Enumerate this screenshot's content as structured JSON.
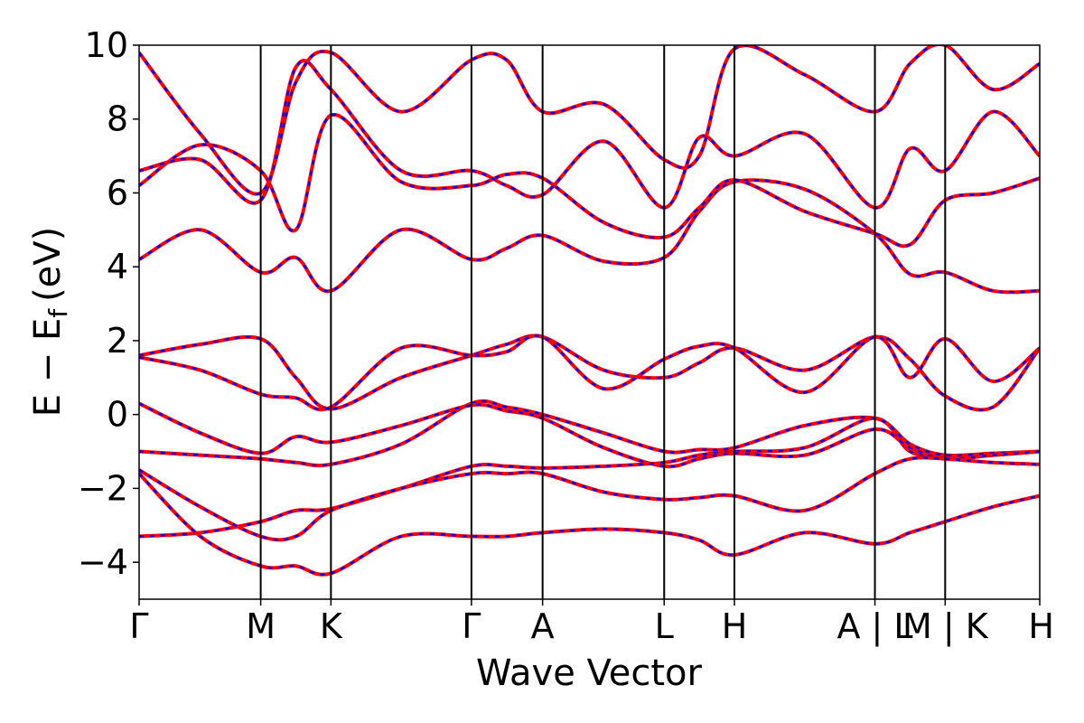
{
  "chart_data": {
    "type": "line",
    "xlabel": "Wave Vector",
    "ylabel": "E − E",
    "ylabel_sub": "f",
    "ylabel_unit": "(eV)",
    "ylim": [
      -5,
      10
    ],
    "yticks": [
      -4,
      -2,
      0,
      2,
      4,
      6,
      8,
      10
    ],
    "ytick_labels": [
      "−4",
      "−2",
      "0",
      "2",
      "4",
      "6",
      "8",
      "10"
    ],
    "xlim": [
      0,
      10
    ],
    "kpoints": [
      {
        "label": "Γ",
        "x": 0.0
      },
      {
        "label": "M",
        "x": 1.35
      },
      {
        "label": "K",
        "x": 2.13
      },
      {
        "label": "Γ",
        "x": 3.69
      },
      {
        "label": "A",
        "x": 4.48
      },
      {
        "label": "L",
        "x": 5.83
      },
      {
        "label": "H",
        "x": 6.61
      },
      {
        "label": "A | L",
        "x": 8.17
      },
      {
        "label": "M | K",
        "x": 8.95
      },
      {
        "label": "H",
        "x": 10.0
      }
    ],
    "grid": false,
    "series_colors": {
      "solid": "#ff0000",
      "dashed": "#0000ff"
    },
    "series": [
      {
        "x": [
          0,
          0.68,
          1.35,
          1.74,
          2.13,
          2.91,
          3.69,
          4.08,
          4.48,
          5.16,
          5.83,
          6.22,
          6.61,
          7.39,
          8.17,
          8.56,
          8.95,
          9.48,
          10
        ],
        "y": [
          -3.3,
          -3.2,
          -2.9,
          -2.6,
          -2.55,
          -2.0,
          -1.4,
          -1.4,
          -1.45,
          -1.4,
          -1.3,
          -1.1,
          -1.0,
          -0.9,
          -0.1,
          -1.0,
          -1.15,
          -1.1,
          -1.0
        ]
      },
      {
        "x": [
          0,
          0.68,
          1.35,
          1.74,
          2.13,
          2.91,
          3.69,
          4.08,
          4.48,
          5.16,
          5.83,
          6.22,
          6.61,
          7.39,
          8.17,
          8.56,
          8.95,
          9.48,
          10
        ],
        "y": [
          -1.0,
          -1.1,
          -1.2,
          -1.3,
          -1.35,
          -0.8,
          0.3,
          0.2,
          0.0,
          -0.5,
          -1.0,
          -0.95,
          -0.9,
          -0.3,
          -0.1,
          -0.8,
          -1.1,
          -1.05,
          -1.0
        ]
      },
      {
        "x": [
          0,
          0.68,
          1.35,
          1.74,
          2.13,
          2.91,
          3.69,
          4.08,
          4.48,
          5.16,
          5.83,
          6.22,
          6.61,
          7.39,
          8.17,
          8.56,
          8.95,
          9.48,
          10
        ],
        "y": [
          0.3,
          -0.5,
          -1.05,
          -0.6,
          -0.75,
          -0.3,
          0.25,
          0.1,
          -0.1,
          -0.9,
          -1.4,
          -1.2,
          -1.05,
          -1.1,
          -0.4,
          -0.9,
          -1.2,
          -1.1,
          -1.0
        ]
      },
      {
        "x": [
          0,
          0.68,
          1.35,
          1.74,
          2.13,
          2.91,
          3.69,
          4.08,
          4.48,
          5.16,
          5.83,
          6.22,
          6.61,
          7.39,
          8.17,
          8.56,
          8.95,
          9.48,
          10
        ],
        "y": [
          -1.5,
          -2.5,
          -3.3,
          -3.3,
          -2.6,
          -2.0,
          -1.6,
          -1.6,
          -1.6,
          -2.1,
          -2.3,
          -2.25,
          -2.2,
          -2.6,
          -1.6,
          -1.2,
          -1.2,
          -1.3,
          -1.35
        ]
      },
      {
        "x": [
          0,
          0.68,
          1.35,
          1.74,
          2.13,
          2.91,
          3.69,
          4.08,
          4.48,
          5.16,
          5.83,
          6.22,
          6.61,
          7.39,
          8.17,
          8.56,
          8.95,
          9.48,
          10
        ],
        "y": [
          -1.6,
          -3.3,
          -4.1,
          -4.1,
          -4.3,
          -3.3,
          -3.3,
          -3.3,
          -3.2,
          -3.1,
          -3.2,
          -3.4,
          -3.8,
          -3.2,
          -3.5,
          -3.2,
          -2.9,
          -2.5,
          -2.2
        ]
      },
      {
        "x": [
          0,
          0.68,
          1.35,
          1.74,
          2.13,
          2.91,
          3.69,
          4.08,
          4.48,
          5.16,
          5.83,
          6.22,
          6.61,
          7.39,
          8.17,
          8.56,
          8.95,
          9.48,
          10
        ],
        "y": [
          1.6,
          1.9,
          2.05,
          1.0,
          0.15,
          1.0,
          1.6,
          1.9,
          2.1,
          1.2,
          1.0,
          1.4,
          1.8,
          1.2,
          2.1,
          1.5,
          0.5,
          0.2,
          1.8
        ]
      },
      {
        "x": [
          0,
          0.68,
          1.35,
          1.74,
          2.13,
          2.91,
          3.69,
          4.08,
          4.48,
          5.16,
          5.83,
          6.22,
          6.61,
          7.39,
          8.17,
          8.56,
          8.95,
          9.48,
          10
        ],
        "y": [
          1.55,
          1.2,
          0.55,
          0.45,
          0.2,
          1.8,
          1.6,
          1.7,
          2.1,
          0.7,
          1.5,
          1.85,
          1.8,
          0.6,
          2.1,
          1.0,
          2.05,
          0.9,
          1.8
        ]
      },
      {
        "x": [
          0,
          0.68,
          1.35,
          1.74,
          2.13,
          2.91,
          3.69,
          4.08,
          4.48,
          5.16,
          5.83,
          6.22,
          6.61,
          7.39,
          8.17,
          8.56,
          8.95,
          9.48,
          10
        ],
        "y": [
          4.2,
          5.0,
          3.85,
          4.25,
          3.35,
          5.0,
          4.2,
          4.5,
          4.85,
          4.15,
          4.25,
          5.5,
          6.3,
          6.1,
          4.9,
          3.8,
          3.85,
          3.35,
          3.35
        ]
      },
      {
        "x": [
          0,
          0.68,
          1.35,
          1.74,
          2.13,
          2.91,
          3.69,
          4.08,
          4.48,
          5.16,
          5.83,
          6.22,
          6.61,
          7.39,
          8.17,
          8.56,
          8.95,
          9.48,
          10
        ],
        "y": [
          6.2,
          7.3,
          6.6,
          5.0,
          8.1,
          6.3,
          6.2,
          6.5,
          6.4,
          5.2,
          4.8,
          5.6,
          6.35,
          5.5,
          4.9,
          4.6,
          5.8,
          6.0,
          6.4
        ]
      },
      {
        "x": [
          0,
          0.68,
          1.35,
          1.74,
          2.13,
          2.91,
          3.69,
          4.08,
          4.48,
          5.16,
          5.83,
          6.22,
          6.61,
          7.39,
          8.17,
          8.56,
          8.95,
          9.48,
          10
        ],
        "y": [
          6.6,
          6.9,
          5.8,
          9.4,
          8.8,
          6.6,
          6.6,
          6.2,
          5.95,
          7.4,
          5.6,
          7.5,
          7.0,
          7.6,
          5.6,
          7.2,
          6.6,
          8.2,
          7.0
        ]
      },
      {
        "x": [
          0,
          0.68,
          1.35,
          1.74,
          2.13,
          2.91,
          3.69,
          4.08,
          4.48,
          5.16,
          5.83,
          6.22,
          6.61,
          7.39,
          8.17,
          8.56,
          8.95,
          9.48,
          10
        ],
        "y": [
          9.8,
          7.6,
          6.0,
          9.0,
          9.8,
          8.2,
          9.6,
          9.6,
          8.2,
          8.4,
          6.9,
          7.0,
          9.9,
          9.2,
          8.2,
          9.5,
          10.0,
          8.8,
          9.5
        ]
      }
    ]
  }
}
